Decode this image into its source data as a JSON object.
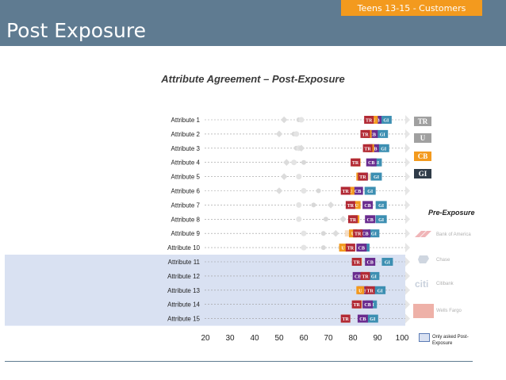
{
  "header": {
    "title": "Post Exposure",
    "badge": "Teens 13-15 - Customers"
  },
  "chart_title": "Attribute Agreement – Post-Exposure",
  "colors": {
    "header_bg": "#5f7b91",
    "badge_bg": "#f39a1e",
    "TR": "#b22a35",
    "U": "#f39a1e",
    "CB": "#6a2c8f",
    "GI": "#3d8fb2",
    "highlight": "#d9e1f2"
  },
  "legend": {
    "title": "Pre-Exposure",
    "keys": [
      {
        "code": "TR",
        "color": "#a0a0a0"
      },
      {
        "code": "U",
        "color": "#a0a0a0"
      },
      {
        "code": "CB",
        "color": "#f39a1e"
      },
      {
        "code": "GI",
        "color": "#2f3b48"
      }
    ],
    "brands": [
      {
        "name": "Bank of America",
        "icon": "bank-of-america-logo"
      },
      {
        "name": "Chase",
        "icon": "chase-logo"
      },
      {
        "name": "Citibank",
        "icon": "citi-logo"
      },
      {
        "name": "Wells Fargo",
        "icon": "wells-fargo-logo"
      }
    ],
    "only_asked": "Only asked Post-Exposure"
  },
  "chart_data": {
    "type": "scatter",
    "title": "Attribute Agreement – Post-Exposure",
    "xlim": [
      20,
      100
    ],
    "xticks": [
      20,
      30,
      40,
      50,
      60,
      70,
      80,
      90,
      100
    ],
    "grid": false,
    "categories": [
      "Attribute 1",
      "Attribute 2",
      "Attribute 3",
      "Attribute 4",
      "Attribute 5",
      "Attribute 6",
      "Attribute 7",
      "Attribute 8",
      "Attribute 9",
      "Attribute 10",
      "Attribute 11",
      "Attribute 12",
      "Attribute 13",
      "Attribute 14",
      "Attribute 15"
    ],
    "only_post_exposure": [
      "Attribute 11",
      "Attribute 12",
      "Attribute 13",
      "Attribute 14",
      "Attribute 15"
    ],
    "series": [
      {
        "name": "TR",
        "values": [
          86.5,
          85,
          86,
          81,
          84,
          77,
          79,
          80,
          82,
          79,
          81.5,
          85,
          87,
          81.5,
          77
        ]
      },
      {
        "name": "U",
        "values": [
          88.5,
          86,
          87,
          81.5,
          83,
          79,
          81.5,
          81,
          80,
          76,
          82,
          85,
          83,
          82,
          77
        ]
      },
      {
        "name": "CB",
        "values": [
          89.5,
          88,
          88.5,
          87.5,
          84,
          82,
          86,
          87,
          85,
          83.5,
          87,
          82,
          84,
          86,
          84
        ]
      },
      {
        "name": "GI",
        "values": [
          93.5,
          92,
          92.5,
          89.5,
          89.5,
          87,
          91.5,
          91.5,
          88.5,
          84.5,
          94,
          88.5,
          91,
          87.5,
          88
        ]
      }
    ],
    "pre_exposure": {
      "TR": [
        58,
        56,
        57,
        60,
        58,
        66,
        64,
        69,
        68,
        68,
        null,
        null,
        null,
        null,
        null
      ],
      "U": [
        52,
        50,
        59,
        53,
        52,
        50,
        71,
        76,
        73,
        75,
        null,
        null,
        null,
        null,
        null
      ],
      "CB": [
        87,
        86,
        86,
        81,
        86,
        77,
        80,
        81,
        78,
        76,
        null,
        null,
        null,
        null,
        null
      ],
      "GI": [
        59,
        57,
        58,
        56,
        58,
        60,
        58,
        58,
        60,
        60,
        null,
        null,
        null,
        null,
        null
      ]
    }
  }
}
